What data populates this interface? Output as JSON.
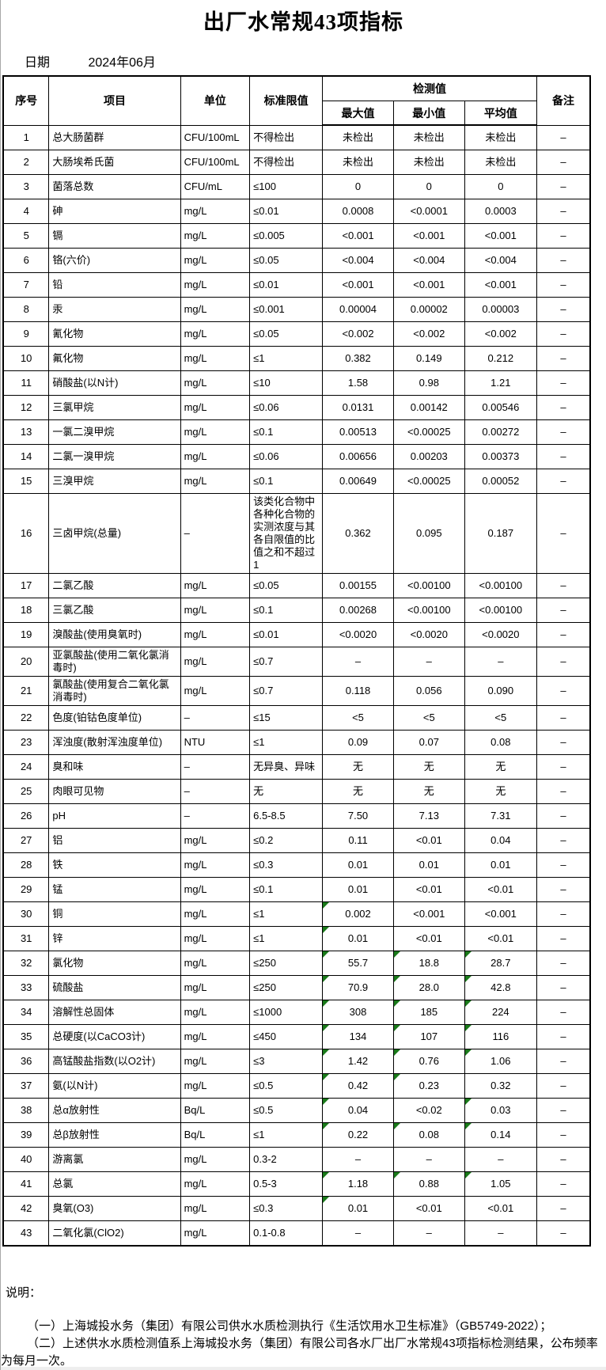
{
  "page": {
    "title": "出厂水常规43项指标",
    "date_label": "日期",
    "date_value": "2024年06月"
  },
  "colors": {
    "border": "#000000",
    "mark_triangle_green": "#1a7a1a",
    "background": "#ffffff"
  },
  "table": {
    "headers": {
      "no": "序号",
      "item": "项目",
      "unit": "单位",
      "limit": "标准限值",
      "detection_group": "检测值",
      "max": "最大值",
      "min": "最小值",
      "avg": "平均值",
      "remark": "备注"
    },
    "rows": [
      {
        "no": "1",
        "item": "总大肠菌群",
        "unit": "CFU/100mL",
        "limit": "不得检出",
        "max": "未检出",
        "min": "未检出",
        "avg": "未检出",
        "remark": "–",
        "marks": []
      },
      {
        "no": "2",
        "item": "大肠埃希氏菌",
        "unit": "CFU/100mL",
        "limit": "不得检出",
        "max": "未检出",
        "min": "未检出",
        "avg": "未检出",
        "remark": "–",
        "marks": []
      },
      {
        "no": "3",
        "item": "菌落总数",
        "unit": "CFU/mL",
        "limit": "≤100",
        "max": "0",
        "min": "0",
        "avg": "0",
        "remark": "–",
        "marks": []
      },
      {
        "no": "4",
        "item": "砷",
        "unit": "mg/L",
        "limit": "≤0.01",
        "max": "0.0008",
        "min": "<0.0001",
        "avg": "0.0003",
        "remark": "–",
        "marks": []
      },
      {
        "no": "5",
        "item": "镉",
        "unit": "mg/L",
        "limit": "≤0.005",
        "max": "<0.001",
        "min": "<0.001",
        "avg": "<0.001",
        "remark": "–",
        "marks": []
      },
      {
        "no": "6",
        "item": "铬(六价)",
        "unit": "mg/L",
        "limit": "≤0.05",
        "max": "<0.004",
        "min": "<0.004",
        "avg": "<0.004",
        "remark": "–",
        "marks": []
      },
      {
        "no": "7",
        "item": "铅",
        "unit": "mg/L",
        "limit": "≤0.01",
        "max": "<0.001",
        "min": "<0.001",
        "avg": "<0.001",
        "remark": "–",
        "marks": []
      },
      {
        "no": "8",
        "item": "汞",
        "unit": "mg/L",
        "limit": "≤0.001",
        "max": "0.00004",
        "min": "0.00002",
        "avg": "0.00003",
        "remark": "–",
        "marks": []
      },
      {
        "no": "9",
        "item": "氰化物",
        "unit": "mg/L",
        "limit": "≤0.05",
        "max": "<0.002",
        "min": "<0.002",
        "avg": "<0.002",
        "remark": "–",
        "marks": []
      },
      {
        "no": "10",
        "item": "氟化物",
        "unit": "mg/L",
        "limit": "≤1",
        "max": "0.382",
        "min": "0.149",
        "avg": "0.212",
        "remark": "–",
        "marks": []
      },
      {
        "no": "11",
        "item": "硝酸盐(以N计)",
        "unit": "mg/L",
        "limit": "≤10",
        "max": "1.58",
        "min": "0.98",
        "avg": "1.21",
        "remark": "–",
        "marks": []
      },
      {
        "no": "12",
        "item": "三氯甲烷",
        "unit": "mg/L",
        "limit": "≤0.06",
        "max": "0.0131",
        "min": "0.00142",
        "avg": "0.00546",
        "remark": "–",
        "marks": []
      },
      {
        "no": "13",
        "item": "一氯二溴甲烷",
        "unit": "mg/L",
        "limit": "≤0.1",
        "max": "0.00513",
        "min": "<0.00025",
        "avg": "0.00272",
        "remark": "–",
        "marks": []
      },
      {
        "no": "14",
        "item": "二氯一溴甲烷",
        "unit": "mg/L",
        "limit": "≤0.06",
        "max": "0.00656",
        "min": "0.00203",
        "avg": "0.00373",
        "remark": "–",
        "marks": []
      },
      {
        "no": "15",
        "item": "三溴甲烷",
        "unit": "mg/L",
        "limit": "≤0.1",
        "max": "0.00649",
        "min": "<0.00025",
        "avg": "0.00052",
        "remark": "–",
        "marks": []
      },
      {
        "no": "16",
        "item": "三卤甲烷(总量)",
        "unit": "–",
        "limit": "该类化合物中各种化合物的实测浓度与其各自限值的比值之和不超过1",
        "max": "0.362",
        "min": "0.095",
        "avg": "0.187",
        "remark": "–",
        "marks": []
      },
      {
        "no": "17",
        "item": "二氯乙酸",
        "unit": "mg/L",
        "limit": "≤0.05",
        "max": "0.00155",
        "min": "<0.00100",
        "avg": "<0.00100",
        "remark": "–",
        "marks": []
      },
      {
        "no": "18",
        "item": "三氯乙酸",
        "unit": "mg/L",
        "limit": "≤0.1",
        "max": "0.00268",
        "min": "<0.00100",
        "avg": "<0.00100",
        "remark": "–",
        "marks": []
      },
      {
        "no": "19",
        "item": "溴酸盐(使用臭氧时)",
        "unit": "mg/L",
        "limit": "≤0.01",
        "max": "<0.0020",
        "min": "<0.0020",
        "avg": "<0.0020",
        "remark": "–",
        "marks": []
      },
      {
        "no": "20",
        "item": "亚氯酸盐(使用二氧化氯消毒时)",
        "unit": "mg/L",
        "limit": "≤0.7",
        "max": "–",
        "min": "–",
        "avg": "–",
        "remark": "–",
        "marks": []
      },
      {
        "no": "21",
        "item": "氯酸盐(使用复合二氧化氯消毒时)",
        "unit": "mg/L",
        "limit": "≤0.7",
        "max": "0.118",
        "min": "0.056",
        "avg": "0.090",
        "remark": "–",
        "marks": []
      },
      {
        "no": "22",
        "item": "色度(铂钴色度单位)",
        "unit": "–",
        "limit": "≤15",
        "max": "<5",
        "min": "<5",
        "avg": "<5",
        "remark": "–",
        "marks": []
      },
      {
        "no": "23",
        "item": "浑浊度(散射浑浊度单位)",
        "unit": "NTU",
        "limit": "≤1",
        "max": "0.09",
        "min": "0.07",
        "avg": "0.08",
        "remark": "–",
        "marks": []
      },
      {
        "no": "24",
        "item": "臭和味",
        "unit": "–",
        "limit": "无异臭、异味",
        "max": "无",
        "min": "无",
        "avg": "无",
        "remark": "–",
        "marks": []
      },
      {
        "no": "25",
        "item": "肉眼可见物",
        "unit": "–",
        "limit": "无",
        "max": "无",
        "min": "无",
        "avg": "无",
        "remark": "–",
        "marks": []
      },
      {
        "no": "26",
        "item": "pH",
        "unit": "–",
        "limit": "6.5-8.5",
        "max": "7.50",
        "min": "7.13",
        "avg": "7.31",
        "remark": "–",
        "marks": []
      },
      {
        "no": "27",
        "item": "铝",
        "unit": "mg/L",
        "limit": "≤0.2",
        "max": "0.11",
        "min": "<0.01",
        "avg": "0.04",
        "remark": "–",
        "marks": []
      },
      {
        "no": "28",
        "item": "铁",
        "unit": "mg/L",
        "limit": "≤0.3",
        "max": "0.01",
        "min": "0.01",
        "avg": "0.01",
        "remark": "–",
        "marks": []
      },
      {
        "no": "29",
        "item": "锰",
        "unit": "mg/L",
        "limit": "≤0.1",
        "max": "0.01",
        "min": "<0.01",
        "avg": "<0.01",
        "remark": "–",
        "marks": []
      },
      {
        "no": "30",
        "item": "铜",
        "unit": "mg/L",
        "limit": "≤1",
        "max": "0.002",
        "min": "<0.001",
        "avg": "<0.001",
        "remark": "–",
        "marks": [
          "max"
        ]
      },
      {
        "no": "31",
        "item": "锌",
        "unit": "mg/L",
        "limit": "≤1",
        "max": "0.01",
        "min": "<0.01",
        "avg": "<0.01",
        "remark": "–",
        "marks": [
          "max"
        ]
      },
      {
        "no": "32",
        "item": "氯化物",
        "unit": "mg/L",
        "limit": "≤250",
        "max": "55.7",
        "min": "18.8",
        "avg": "28.7",
        "remark": "–",
        "marks": [
          "max",
          "min",
          "avg"
        ]
      },
      {
        "no": "33",
        "item": "硫酸盐",
        "unit": "mg/L",
        "limit": "≤250",
        "max": "70.9",
        "min": "28.0",
        "avg": "42.8",
        "remark": "–",
        "marks": [
          "max",
          "min",
          "avg"
        ]
      },
      {
        "no": "34",
        "item": "溶解性总固体",
        "unit": "mg/L",
        "limit": "≤1000",
        "max": "308",
        "min": "185",
        "avg": "224",
        "remark": "–",
        "marks": [
          "max",
          "min",
          "avg"
        ]
      },
      {
        "no": "35",
        "item": "总硬度(以CaCO3计)",
        "unit": "mg/L",
        "limit": "≤450",
        "max": "134",
        "min": "107",
        "avg": "116",
        "remark": "–",
        "marks": [
          "max",
          "min",
          "avg"
        ]
      },
      {
        "no": "36",
        "item": "高锰酸盐指数(以O2计)",
        "unit": "mg/L",
        "limit": "≤3",
        "max": "1.42",
        "min": "0.76",
        "avg": "1.06",
        "remark": "–",
        "marks": [
          "max",
          "min",
          "avg"
        ]
      },
      {
        "no": "37",
        "item": "氨(以N计)",
        "unit": "mg/L",
        "limit": "≤0.5",
        "max": "0.42",
        "min": "0.23",
        "avg": "0.32",
        "remark": "–",
        "marks": [
          "max",
          "min"
        ]
      },
      {
        "no": "38",
        "item": "总α放射性",
        "unit": "Bq/L",
        "limit": "≤0.5",
        "max": "0.04",
        "min": "<0.02",
        "avg": "0.03",
        "remark": "–",
        "marks": [
          "max",
          "avg"
        ]
      },
      {
        "no": "39",
        "item": "总β放射性",
        "unit": "Bq/L",
        "limit": "≤1",
        "max": "0.22",
        "min": "0.08",
        "avg": "0.14",
        "remark": "–",
        "marks": [
          "max",
          "min",
          "avg"
        ]
      },
      {
        "no": "40",
        "item": "游离氯",
        "unit": "mg/L",
        "limit": "0.3-2",
        "max": "–",
        "min": "–",
        "avg": "–",
        "remark": "–",
        "marks": []
      },
      {
        "no": "41",
        "item": "总氯",
        "unit": "mg/L",
        "limit": "0.5-3",
        "max": "1.18",
        "min": "0.88",
        "avg": "1.05",
        "remark": "–",
        "marks": [
          "max",
          "min",
          "avg"
        ]
      },
      {
        "no": "42",
        "item": "臭氧(O3)",
        "unit": "mg/L",
        "limit": "≤0.3",
        "max": "0.01",
        "min": "<0.01",
        "avg": "<0.01",
        "remark": "–",
        "marks": [
          "max"
        ]
      },
      {
        "no": "43",
        "item": "二氧化氯(ClO2)",
        "unit": "mg/L",
        "limit": "0.1-0.8",
        "max": "–",
        "min": "–",
        "avg": "–",
        "remark": "–",
        "marks": []
      }
    ]
  },
  "notes": {
    "title": "说明：",
    "items": [
      "（一）上海城投水务（集团）有限公司供水水质检测执行《生活饮用水卫生标准》（GB5749-2022）；",
      "（二）上述供水水质检测值系上海城投水务（集团）有限公司各水厂出厂水常规43项指标检测结果，公布频率为每月一次。"
    ]
  }
}
